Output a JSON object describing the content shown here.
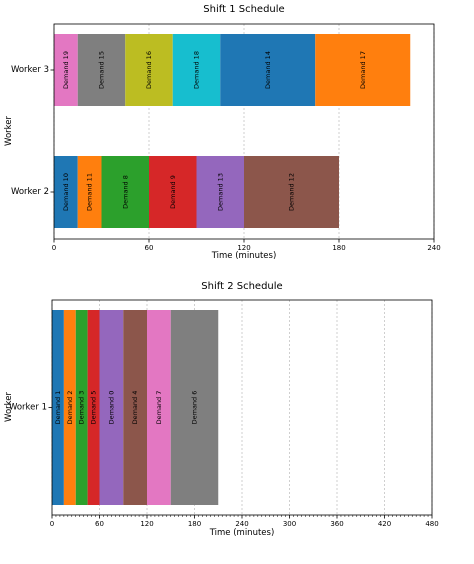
{
  "chart_data": [
    {
      "type": "bar",
      "orientation": "horizontal-gantt",
      "title": "Shift 1 Schedule",
      "xlabel": "Time (minutes)",
      "ylabel": "Worker",
      "xlim": [
        0,
        240
      ],
      "xticks": [
        "0",
        "60",
        "120",
        "180",
        "240"
      ],
      "grid": "vertical dashed",
      "workers": [
        "Worker 3",
        "Worker 2"
      ],
      "tasks": [
        {
          "worker": "Worker 3",
          "label": "Demand 19",
          "start": 0,
          "end": 15,
          "color": "#e377c2"
        },
        {
          "worker": "Worker 3",
          "label": "Demand 15",
          "start": 15,
          "end": 45,
          "color": "#7f7f7f"
        },
        {
          "worker": "Worker 3",
          "label": "Demand 16",
          "start": 45,
          "end": 75,
          "color": "#bcbd22"
        },
        {
          "worker": "Worker 3",
          "label": "Demand 18",
          "start": 75,
          "end": 105,
          "color": "#17becf"
        },
        {
          "worker": "Worker 3",
          "label": "Demand 14",
          "start": 105,
          "end": 165,
          "color": "#1f77b4"
        },
        {
          "worker": "Worker 3",
          "label": "Demand 17",
          "start": 165,
          "end": 225,
          "color": "#ff7f0e"
        },
        {
          "worker": "Worker 2",
          "label": "Demand 10",
          "start": 0,
          "end": 15,
          "color": "#1f77b4"
        },
        {
          "worker": "Worker 2",
          "label": "Demand 11",
          "start": 15,
          "end": 30,
          "color": "#ff7f0e"
        },
        {
          "worker": "Worker 2",
          "label": "Demand 8",
          "start": 30,
          "end": 60,
          "color": "#2ca02c"
        },
        {
          "worker": "Worker 2",
          "label": "Demand 9",
          "start": 60,
          "end": 90,
          "color": "#d62728"
        },
        {
          "worker": "Worker 2",
          "label": "Demand 13",
          "start": 90,
          "end": 120,
          "color": "#9467bd"
        },
        {
          "worker": "Worker 2",
          "label": "Demand 12",
          "start": 120,
          "end": 180,
          "color": "#8c564b"
        }
      ]
    },
    {
      "type": "bar",
      "orientation": "horizontal-gantt",
      "title": "Shift 2 Schedule",
      "xlabel": "Time (minutes)",
      "ylabel": "Worker",
      "xlim": [
        0,
        480
      ],
      "xticks": [
        "0",
        "60",
        "120",
        "180",
        "240",
        "300",
        "360",
        "420",
        "480"
      ],
      "grid": "vertical dashed",
      "workers": [
        "Worker 1"
      ],
      "tasks": [
        {
          "worker": "Worker 1",
          "label": "Demand 1",
          "start": 0,
          "end": 15,
          "color": "#1f77b4"
        },
        {
          "worker": "Worker 1",
          "label": "Demand 2",
          "start": 15,
          "end": 30,
          "color": "#ff7f0e"
        },
        {
          "worker": "Worker 1",
          "label": "Demand 3",
          "start": 30,
          "end": 45,
          "color": "#2ca02c"
        },
        {
          "worker": "Worker 1",
          "label": "Demand 5",
          "start": 45,
          "end": 60,
          "color": "#d62728"
        },
        {
          "worker": "Worker 1",
          "label": "Demand 0",
          "start": 60,
          "end": 90,
          "color": "#9467bd"
        },
        {
          "worker": "Worker 1",
          "label": "Demand 4",
          "start": 90,
          "end": 120,
          "color": "#8c564b"
        },
        {
          "worker": "Worker 1",
          "label": "Demand 7",
          "start": 120,
          "end": 150,
          "color": "#e377c2"
        },
        {
          "worker": "Worker 1",
          "label": "Demand 6",
          "start": 150,
          "end": 210,
          "color": "#7f7f7f"
        }
      ]
    }
  ]
}
